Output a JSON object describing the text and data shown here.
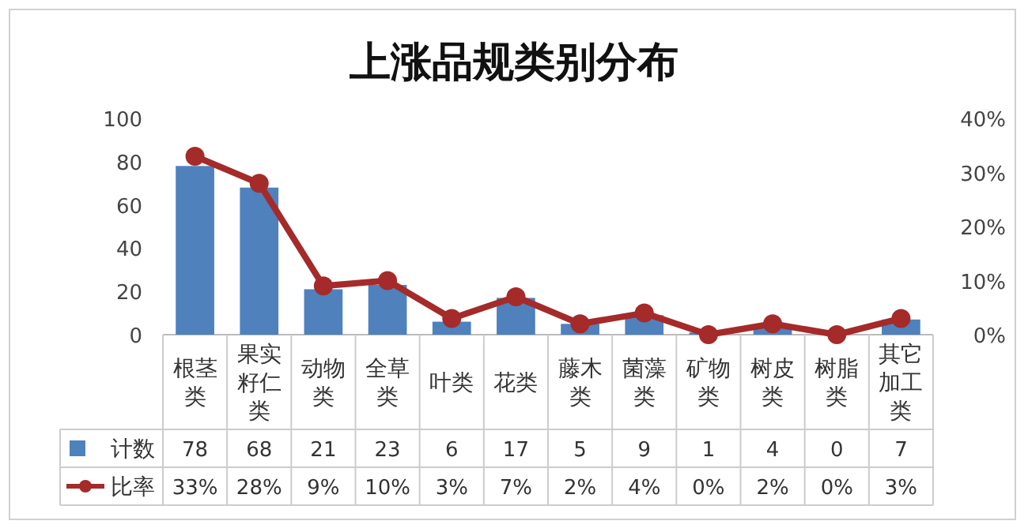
{
  "chart_data": {
    "type": "bar",
    "title": "上涨品规类别分布",
    "categories": [
      "根茎类",
      "果实籽仁类",
      "动物类",
      "全草类",
      "叶类",
      "花类",
      "藤木类",
      "菌藻类",
      "矿物类",
      "树皮类",
      "树脂类",
      "其它加工类"
    ],
    "series": [
      {
        "name": "计数",
        "color": "#4f81bd",
        "values": [
          78,
          68,
          21,
          23,
          6,
          17,
          5,
          9,
          1,
          4,
          0,
          7
        ],
        "value_labels": [
          "78",
          "68",
          "21",
          "23",
          "6",
          "17",
          "5",
          "9",
          "1",
          "4",
          "0",
          "7"
        ]
      },
      {
        "name": "比率",
        "type": "line",
        "axis": "y2",
        "color": "#a52a2a",
        "marker": "circle",
        "line_style": "solid",
        "values": [
          33,
          28,
          9,
          10,
          3,
          7,
          2,
          4,
          0,
          2,
          0,
          3
        ],
        "value_labels": [
          "33%",
          "28%",
          "9%",
          "10%",
          "3%",
          "7%",
          "2%",
          "4%",
          "0%",
          "2%",
          "0%",
          "3%"
        ]
      }
    ],
    "ylim": [
      0,
      100
    ],
    "yticks": [
      0,
      20,
      40,
      60,
      80,
      100
    ],
    "y2lim": [
      0,
      40
    ],
    "y2ticks": [
      {
        "value": 0,
        "label": "0%"
      },
      {
        "value": 10,
        "label": "10%"
      },
      {
        "value": 20,
        "label": "20%"
      },
      {
        "value": 30,
        "label": "30%"
      },
      {
        "value": 40,
        "label": "40%"
      }
    ],
    "grid": false,
    "legend": "bottom"
  }
}
